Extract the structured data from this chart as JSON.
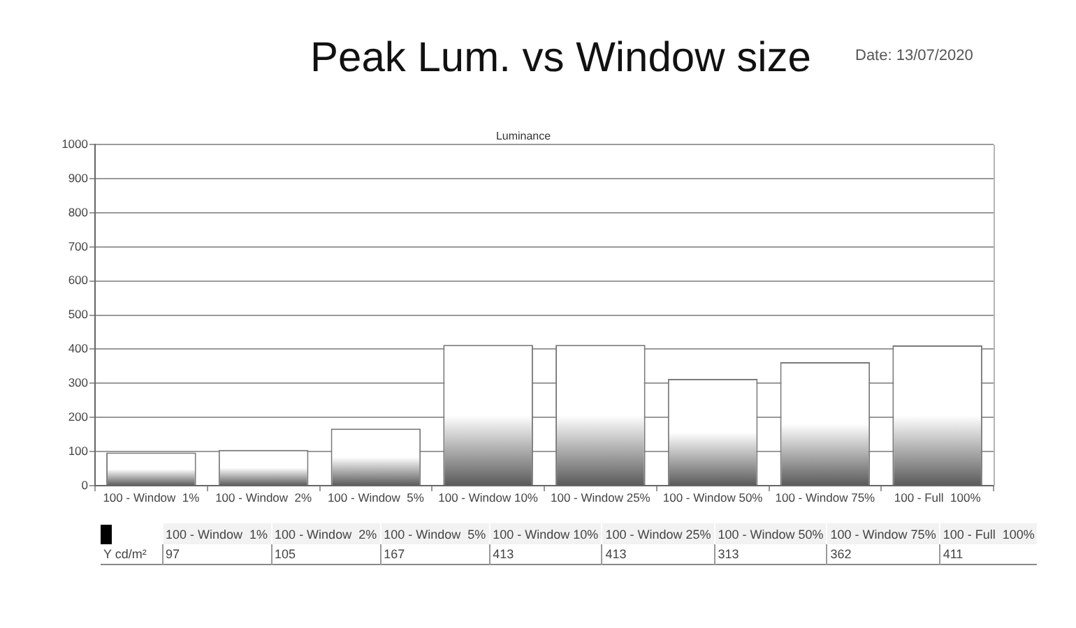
{
  "chart_data": {
    "type": "bar",
    "title": "Peak Lum. vs Window size",
    "subtitle": "Luminance",
    "annotations": [
      "Date: 13/07/2020"
    ],
    "categories": [
      "100 - Window  1%",
      "100 - Window  2%",
      "100 - Window  5%",
      "100 - Window 10%",
      "100 - Window 25%",
      "100 - Window 50%",
      "100 - Window 75%",
      "100 - Full  100%"
    ],
    "series": [
      {
        "name": "Y cd/m²",
        "color": "#ffffff",
        "values": [
          97,
          105,
          167,
          413,
          413,
          313,
          362,
          411
        ]
      }
    ],
    "ylim": [
      0,
      1000
    ],
    "yticks": [
      0,
      100,
      200,
      300,
      400,
      500,
      600,
      700,
      800,
      900,
      1000
    ],
    "grid": "y",
    "data_labels": true
  }
}
